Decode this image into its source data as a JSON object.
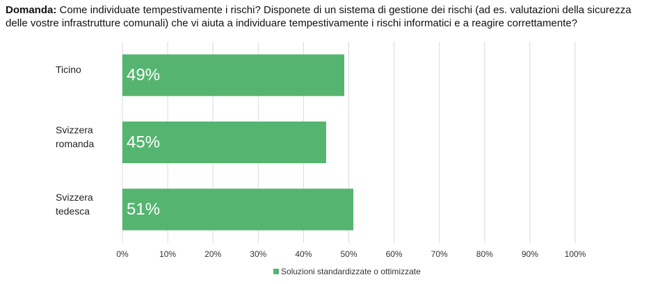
{
  "chart_data": {
    "type": "bar",
    "orientation": "horizontal",
    "title_label": "Domanda:",
    "title": "Come individuate tempestivamente i rischi? Disponete di un sistema di gestione dei rischi (ad es. valutazioni della sicurezza delle vostre infrastrutture comunali) che vi aiuta a individuare tempestivamente i rischi informatici e a reagire correttamente?",
    "categories": [
      "Ticino",
      "Svizzera romanda",
      "Svizzera tedesca"
    ],
    "series": [
      {
        "name": "Soluzioni standardizzate o ottimizzate",
        "color": "#55b570",
        "values": [
          49,
          45,
          51
        ],
        "value_labels": [
          "49%",
          "45%",
          "51%"
        ]
      }
    ],
    "xlim": [
      0,
      100
    ],
    "xticks": [
      {
        "value": 0,
        "label": "0%"
      },
      {
        "value": 10,
        "label": "10%"
      },
      {
        "value": 20,
        "label": "20%"
      },
      {
        "value": 30,
        "label": "30%"
      },
      {
        "value": 40,
        "label": "40%"
      },
      {
        "value": 50,
        "label": "50%"
      },
      {
        "value": 60,
        "label": "60%"
      },
      {
        "value": 70,
        "label": "70%"
      },
      {
        "value": 80,
        "label": "80%"
      },
      {
        "value": 90,
        "label": "90%"
      },
      {
        "value": 100,
        "label": "100%"
      }
    ],
    "grid": true,
    "legend": "bottom"
  }
}
